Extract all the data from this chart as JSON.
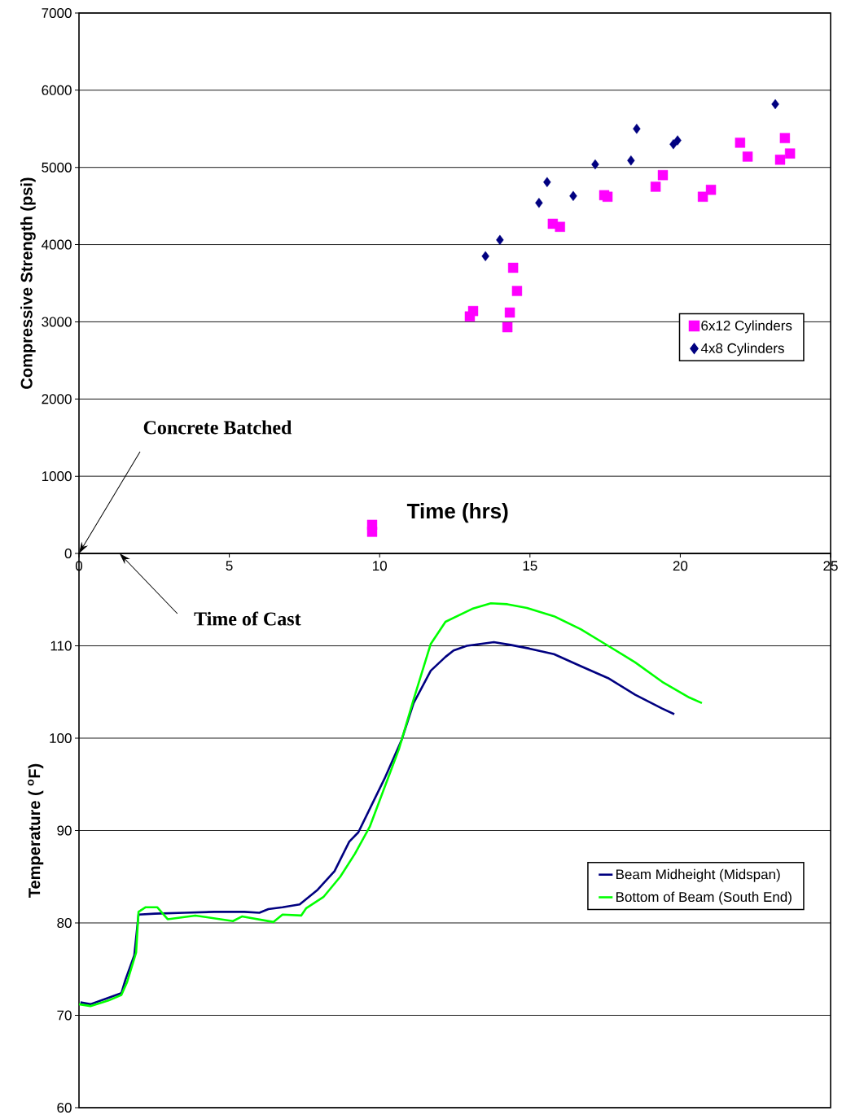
{
  "chart_data": [
    {
      "type": "scatter",
      "xlabel": "Time (hrs)",
      "ylabel": "Compressive Strength (psi)",
      "xlim": [
        0,
        25
      ],
      "xticks": [
        0,
        5,
        10,
        15,
        20,
        25
      ],
      "ylim": [
        0,
        7000
      ],
      "yticks": [
        0,
        1000,
        2000,
        3000,
        4000,
        5000,
        6000,
        7000
      ],
      "grid": "y",
      "legend": "right",
      "annotations": [
        "Concrete Batched",
        "Time of Cast"
      ],
      "series": [
        {
          "name": "6x12 Cylinders",
          "color": "#ff00ff",
          "marker": "square",
          "x": [
            9.75,
            9.75,
            13.0,
            13.11,
            14.25,
            14.33,
            14.44,
            14.57,
            15.76,
            16.0,
            17.47,
            17.58,
            19.18,
            19.42,
            20.75,
            21.02,
            21.99,
            22.24,
            23.32,
            23.48,
            23.65
          ],
          "values": [
            370,
            280,
            3070,
            3140,
            2930,
            3120,
            3700,
            3400,
            4270,
            4230,
            4640,
            4620,
            4750,
            4900,
            4620,
            4710,
            5320,
            5140,
            5100,
            5380,
            5180
          ]
        },
        {
          "name": "4x8 Cylinders",
          "color": "#000080",
          "marker": "diamond",
          "x": [
            13.52,
            14.0,
            15.3,
            15.57,
            16.44,
            17.17,
            18.36,
            18.55,
            19.77,
            19.91,
            23.16
          ],
          "values": [
            3850,
            4060,
            4540,
            4810,
            4630,
            5040,
            5090,
            5500,
            5300,
            5350,
            5820
          ]
        }
      ]
    },
    {
      "type": "line",
      "ylabel": "Temperature ( $^{o}$F)",
      "xlim": [
        0,
        25
      ],
      "ylim": [
        60,
        120
      ],
      "yticks": [
        60,
        70,
        80,
        90,
        100,
        110
      ],
      "grid": "y",
      "legend": "right",
      "tick_labels": "y",
      "series": [
        {
          "name": "Beam Midheight (Midspan)",
          "color": "#000080",
          "marker": "none",
          "x": [
            0.05,
            0.38,
            0.98,
            1.41,
            1.54,
            1.84,
            1.98,
            2.52,
            3.5,
            4.5,
            5.5,
            6.0,
            6.3,
            6.77,
            7.34,
            7.94,
            8.5,
            8.99,
            9.29,
            10.16,
            10.73,
            11.13,
            11.7,
            12.19,
            12.46,
            12.9,
            13.8,
            14.35,
            14.98,
            15.8,
            16.69,
            17.6,
            18.5,
            19.4,
            19.8
          ],
          "values": [
            71.4,
            71.2,
            71.9,
            72.4,
            73.8,
            76.5,
            80.9,
            81.0,
            81.1,
            81.2,
            81.2,
            81.1,
            81.5,
            81.7,
            82.0,
            83.6,
            85.6,
            88.8,
            89.8,
            95.6,
            99.8,
            103.8,
            107.3,
            108.8,
            109.5,
            110.0,
            110.4,
            110.1,
            109.7,
            109.1,
            107.8,
            106.5,
            104.7,
            103.2,
            102.6
          ]
        },
        {
          "name": "Bottom of Beam (South End)",
          "color": "#00ff00",
          "marker": "none",
          "x": [
            0.0,
            0.38,
            0.98,
            1.41,
            1.6,
            1.9,
            1.98,
            2.22,
            2.6,
            2.95,
            3.87,
            5.12,
            5.42,
            6.47,
            6.77,
            7.39,
            7.56,
            8.13,
            8.69,
            9.18,
            9.67,
            10.64,
            11.13,
            11.7,
            12.19,
            13.08,
            13.7,
            14.25,
            14.9,
            15.8,
            16.69,
            17.6,
            18.5,
            19.4,
            20.3,
            20.72
          ],
          "values": [
            71.2,
            71.0,
            71.6,
            72.2,
            73.6,
            76.8,
            81.2,
            81.7,
            81.7,
            80.4,
            80.8,
            80.2,
            80.7,
            80.1,
            80.9,
            80.8,
            81.6,
            82.8,
            85.0,
            87.5,
            90.4,
            98.8,
            104.2,
            110.2,
            112.6,
            114.0,
            114.6,
            114.5,
            114.1,
            113.2,
            111.8,
            110.0,
            108.2,
            106.1,
            104.4,
            103.8
          ]
        }
      ]
    }
  ]
}
